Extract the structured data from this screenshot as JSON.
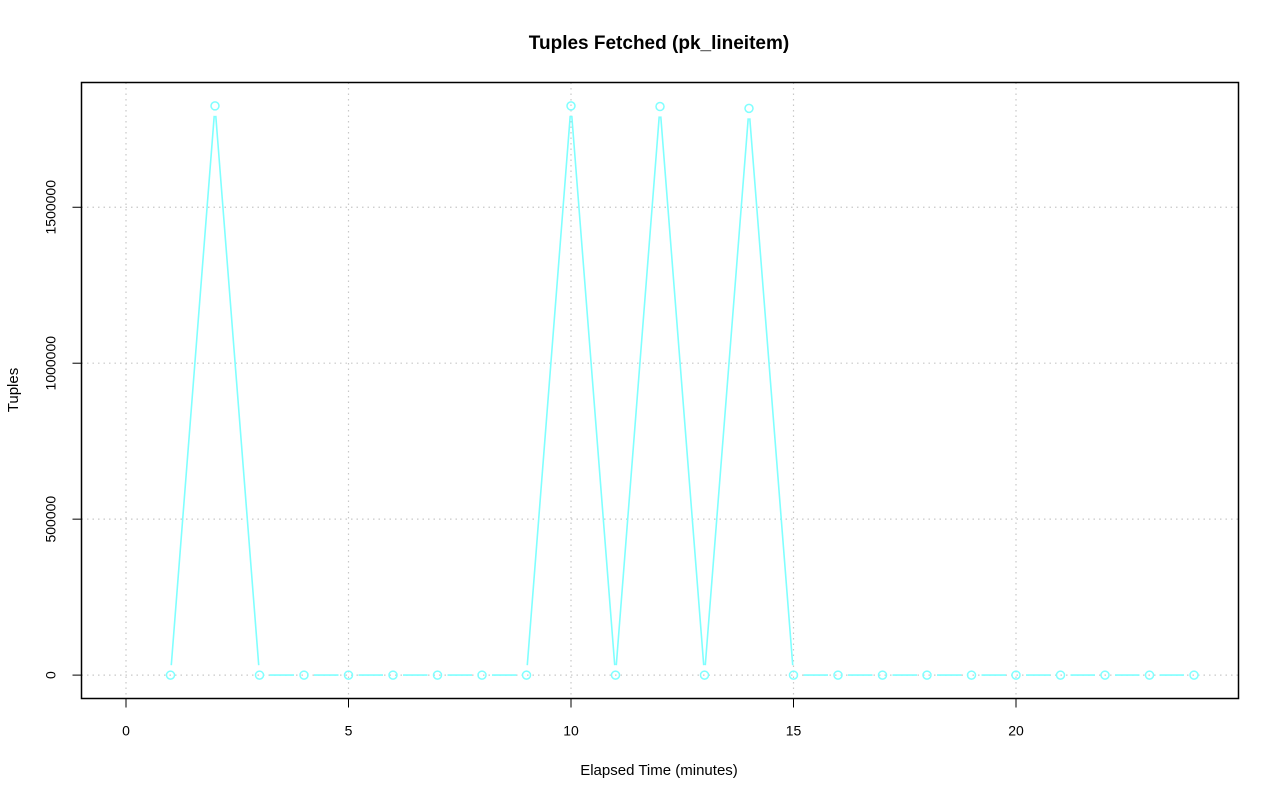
{
  "chart_data": {
    "type": "line",
    "title": "Tuples Fetched (pk_lineitem)",
    "xlabel": "Elapsed Time (minutes)",
    "ylabel": "Tuples",
    "xlim": [
      -1,
      25
    ],
    "ylim": [
      -75000,
      1900000
    ],
    "x_ticks": [
      0,
      5,
      10,
      15,
      20
    ],
    "y_ticks": [
      0,
      500000,
      1000000,
      1500000
    ],
    "x_tick_labels": [
      "0",
      "5",
      "10",
      "15",
      "20"
    ],
    "y_tick_labels": [
      "0",
      "500000",
      "1000000",
      "1500000"
    ],
    "grid": true,
    "line_color": "#7fffff",
    "marker": "open-circle",
    "series": [
      {
        "x": [
          1,
          2,
          3,
          4,
          5,
          6,
          7,
          8,
          9,
          10,
          11,
          12,
          13,
          14,
          15,
          16,
          17,
          18,
          19,
          20,
          21,
          22,
          23,
          24
        ],
        "values": [
          0,
          1825000,
          0,
          0,
          0,
          0,
          0,
          0,
          0,
          1825000,
          0,
          1823000,
          0,
          1817000,
          0,
          0,
          0,
          0,
          0,
          0,
          0,
          0,
          0,
          0
        ]
      }
    ]
  }
}
